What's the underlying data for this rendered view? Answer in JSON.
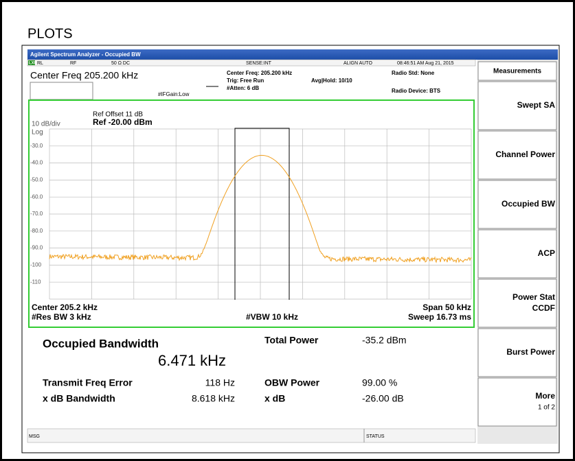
{
  "heading": "PLOTS",
  "title_bar": "Agilent Spectrum Analyzer - Occupied BW",
  "status_row": {
    "lxi": "LXI",
    "rl": "RL",
    "rf": "RF",
    "impedance": "50 Ω  DC",
    "sense": "SENSE:INT",
    "align": "ALIGN AUTO",
    "timestamp": "08:46:51 AM Aug 21, 2015"
  },
  "settings": {
    "center_freq_large": "Center Freq 205.200 kHz",
    "if_gain": "#IFGain:Low",
    "center_freq": "Center Freq: 205.200 kHz",
    "trig": "Trig: Free Run",
    "atten": "#Atten: 6 dB",
    "avg_hold": "Avg|Hold: 10/10",
    "radio_std": "Radio Std: None",
    "radio_device": "Radio Device: BTS"
  },
  "plot": {
    "ref_offset": "Ref Offset 11 dB",
    "ref_level": "Ref -20.00 dBm",
    "scale": "10 dB/div",
    "scale_type": "Log",
    "y_labels": [
      "-30.0",
      "-40.0",
      "-50.0",
      "-60.0",
      "-70.0",
      "-80.0",
      "-90.0",
      "-100",
      "-110"
    ],
    "center": "Center  205.2 kHz",
    "res_bw": "#Res BW  3 kHz",
    "vbw": "#VBW  10 kHz",
    "span": "Span 50 kHz",
    "sweep": "Sweep  16.73 ms"
  },
  "results": {
    "occupied_bandwidth": {
      "label": "Occupied Bandwidth",
      "value": "6.471 kHz"
    },
    "total_power": {
      "label": "Total Power",
      "value": "-35.2 dBm"
    },
    "transmit_freq_error": {
      "label": "Transmit Freq Error",
      "value": "118 Hz"
    },
    "obw_power": {
      "label": "OBW Power",
      "value": "99.00 %"
    },
    "x_db_bandwidth": {
      "label": "x dB Bandwidth",
      "value": "8.618 kHz"
    },
    "x_db": {
      "label": "x dB",
      "value": "-26.00 dB"
    }
  },
  "softkeys": {
    "header": "Measurements",
    "buttons": [
      [
        "Swept SA"
      ],
      [
        "Channel Power"
      ],
      [
        "Occupied BW"
      ],
      [
        "ACP"
      ],
      [
        "Power Stat",
        "CCDF"
      ],
      [
        "Burst Power"
      ],
      [
        "More",
        "1 of 2"
      ]
    ]
  },
  "footer": {
    "msg": "MSG",
    "status": "STATUS"
  }
}
